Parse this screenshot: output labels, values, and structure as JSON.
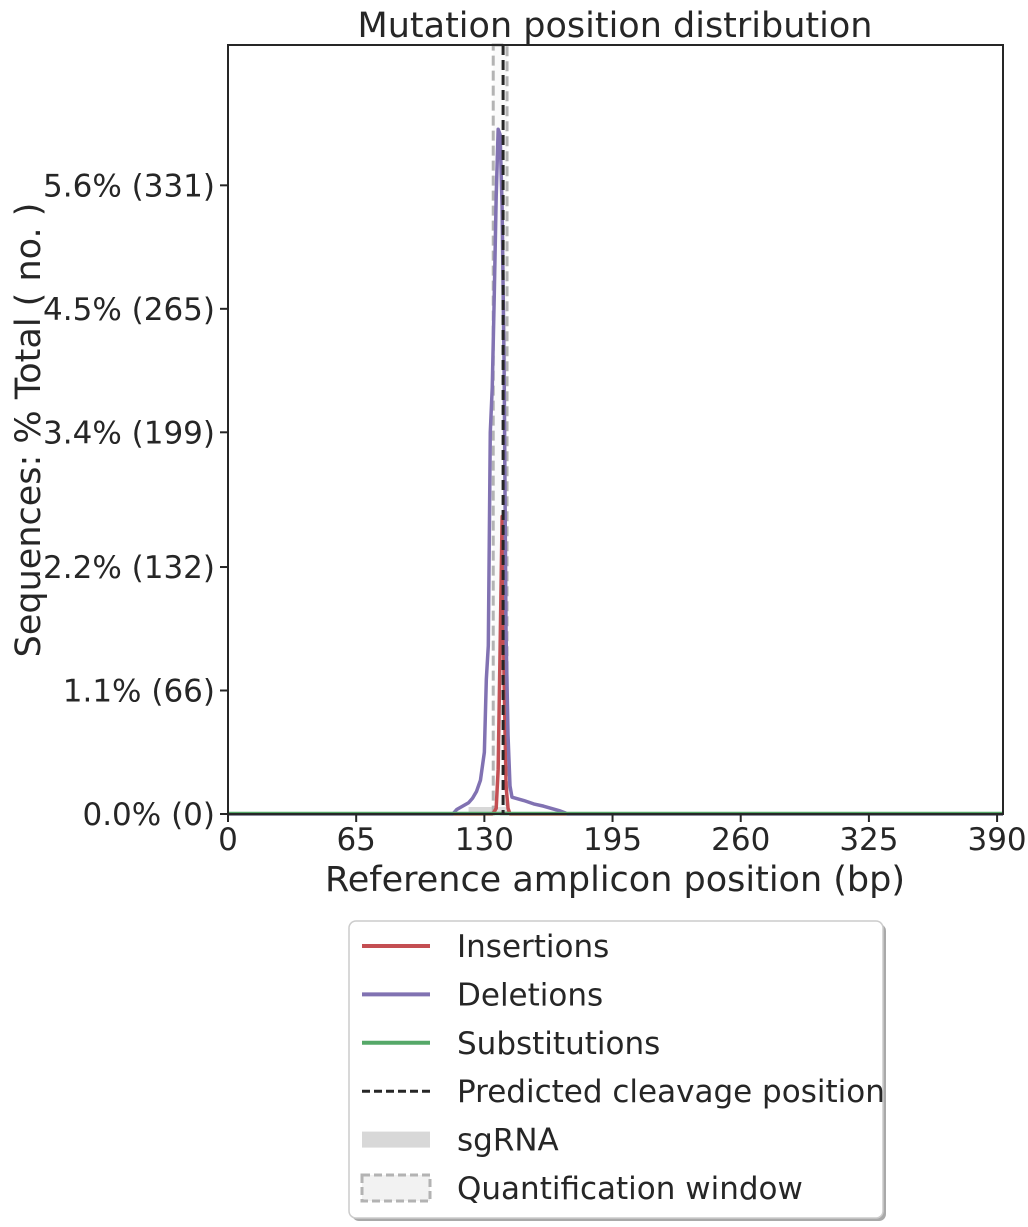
{
  "chart_data": {
    "type": "line",
    "title": "Mutation position distribution",
    "xlabel": "Reference amplicon position (bp)",
    "ylabel": "Sequences: % Total ( no. )",
    "xlim": [
      0,
      393
    ],
    "ylim": [
      0,
      6.85
    ],
    "x_ticks": [
      0,
      65,
      130,
      195,
      260,
      325,
      390
    ],
    "x_tick_labels": [
      "0",
      "65",
      "130",
      "195",
      "260",
      "325",
      "390"
    ],
    "y_ticks": [
      0.0,
      1.1,
      2.2,
      3.4,
      4.5,
      5.6
    ],
    "y_tick_labels": [
      "0.0% (0)",
      "1.1% (66)",
      "2.2% (132)",
      "3.4% (199)",
      "4.5% (265)",
      "5.6% (331)"
    ],
    "grid": false,
    "legend_position": "bottom-center, outside plot",
    "series": [
      {
        "name": "Insertions",
        "color": "#c44e52",
        "points": [
          [
            0,
            0
          ],
          [
            134,
            0
          ],
          [
            135,
            0.02
          ],
          [
            136,
            0.05
          ],
          [
            137,
            0.4
          ],
          [
            138,
            1.5
          ],
          [
            139,
            2.65
          ],
          [
            140,
            1.2
          ],
          [
            141,
            0.25
          ],
          [
            142,
            0.05
          ],
          [
            143,
            0
          ],
          [
            393,
            0
          ]
        ]
      },
      {
        "name": "Deletions",
        "color": "#8172b2",
        "points": [
          [
            0,
            0
          ],
          [
            114,
            0
          ],
          [
            116,
            0.04
          ],
          [
            119,
            0.07
          ],
          [
            122,
            0.1
          ],
          [
            124,
            0.14
          ],
          [
            126,
            0.2
          ],
          [
            128,
            0.3
          ],
          [
            130,
            0.55
          ],
          [
            131,
            1.2
          ],
          [
            132,
            1.5
          ],
          [
            133,
            3.4
          ],
          [
            134,
            3.8
          ],
          [
            135,
            4.6
          ],
          [
            136,
            5.5
          ],
          [
            137,
            6.1
          ],
          [
            138,
            6.05
          ],
          [
            139,
            5.4
          ],
          [
            140,
            4.0
          ],
          [
            141,
            1.6
          ],
          [
            142,
            0.7
          ],
          [
            143,
            0.25
          ],
          [
            144,
            0.15
          ],
          [
            150,
            0.12
          ],
          [
            155,
            0.09
          ],
          [
            160,
            0.07
          ],
          [
            164,
            0.05
          ],
          [
            168,
            0.03
          ],
          [
            171,
            0.01
          ],
          [
            172,
            0
          ],
          [
            393,
            0
          ]
        ]
      },
      {
        "name": "Substitutions",
        "color": "#55a868",
        "points": [
          [
            0,
            0.005
          ],
          [
            393,
            0.005
          ]
        ]
      }
    ],
    "cleavage_position": 139.5,
    "sgrna": {
      "name": "sgRNA",
      "start": 122,
      "end": 142,
      "color": "#d8d8d8"
    },
    "quantification_window": {
      "name": "Quantification window",
      "start": 134.5,
      "end": 141.5,
      "color": "#b3b3b3"
    },
    "legend": [
      {
        "label": "Insertions",
        "style": "line",
        "color": "#c44e52"
      },
      {
        "label": "Deletions",
        "style": "line",
        "color": "#8172b2"
      },
      {
        "label": "Substitutions",
        "style": "line",
        "color": "#55a868"
      },
      {
        "label": "Predicted cleavage position",
        "style": "dashed",
        "color": "#262626"
      },
      {
        "label": "sgRNA",
        "style": "thick",
        "color": "#d8d8d8"
      },
      {
        "label": "Quantification window",
        "style": "box-dashed",
        "color": "#b3b3b3"
      }
    ]
  }
}
